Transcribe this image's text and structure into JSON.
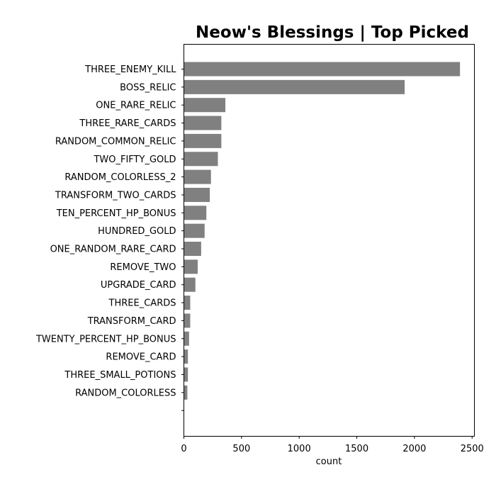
{
  "chart_data": {
    "type": "bar",
    "orientation": "horizontal",
    "title": "Neow's Blessings | Top Picked",
    "xlabel": "count",
    "ylabel": "",
    "xlim": [
      0,
      2520
    ],
    "xticks": [
      0,
      500,
      1000,
      1500,
      2000,
      2500
    ],
    "grid": false,
    "bar_color": "#808080",
    "categories": [
      "THREE_ENEMY_KILL",
      "BOSS_RELIC",
      "ONE_RARE_RELIC",
      "THREE_RARE_CARDS",
      "RANDOM_COMMON_RELIC",
      "TWO_FIFTY_GOLD",
      "RANDOM_COLORLESS_2",
      "TRANSFORM_TWO_CARDS",
      "TEN_PERCENT_HP_BONUS",
      "HUNDRED_GOLD",
      "ONE_RANDOM_RARE_CARD",
      "REMOVE_TWO",
      "UPGRADE_CARD",
      "THREE_CARDS",
      "TRANSFORM_CARD",
      "TWENTY_PERCENT_HP_BONUS",
      "REMOVE_CARD",
      "THREE_SMALL_POTIONS",
      "RANDOM_COLORLESS",
      ""
    ],
    "values": [
      2395,
      1915,
      360,
      325,
      325,
      295,
      235,
      225,
      195,
      180,
      150,
      120,
      100,
      55,
      55,
      45,
      35,
      35,
      30,
      0
    ]
  }
}
